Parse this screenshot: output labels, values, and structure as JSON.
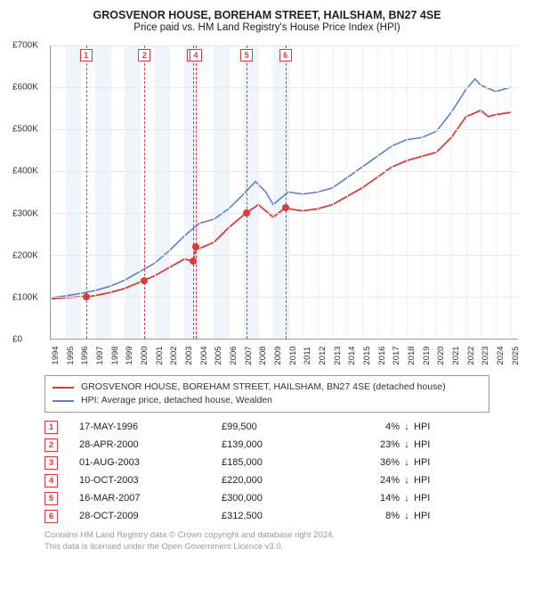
{
  "title": "GROSVENOR HOUSE, BOREHAM STREET, HAILSHAM, BN27 4SE",
  "subtitle": "Price paid vs. HM Land Registry's House Price Index (HPI)",
  "chart": {
    "type": "line",
    "xlim": [
      1994,
      2025.5
    ],
    "ylim": [
      0,
      700000
    ],
    "ytick_step": 100000,
    "ytick_labels": [
      "£0",
      "£100K",
      "£200K",
      "£300K",
      "£400K",
      "£500K",
      "£600K",
      "£700K"
    ],
    "xtick_years": [
      1994,
      1995,
      1996,
      1997,
      1998,
      1999,
      2000,
      2001,
      2002,
      2003,
      2004,
      2005,
      2006,
      2007,
      2008,
      2009,
      2010,
      2011,
      2012,
      2013,
      2014,
      2015,
      2016,
      2017,
      2018,
      2019,
      2020,
      2021,
      2022,
      2023,
      2024,
      2025
    ],
    "background_color": "#ffffff",
    "grid_color": "#e8e8e8",
    "band_color": "#e9eff9",
    "bands": [
      [
        1995,
        1996
      ],
      [
        1997,
        1998
      ],
      [
        1999,
        2000
      ],
      [
        2001,
        2002
      ],
      [
        2003,
        2004
      ],
      [
        2005,
        2006
      ],
      [
        2007,
        2008
      ],
      [
        2009,
        2010
      ]
    ],
    "marker_dash_color": "#dd3b3b",
    "series": [
      {
        "name": "property",
        "label": "GROSVENOR HOUSE, BOREHAM STREET, HAILSHAM, BN27 4SE (detached house)",
        "color": "#dd3b3b",
        "line_width": 1.8,
        "points": [
          [
            1994.0,
            95000
          ],
          [
            1995.0,
            98000
          ],
          [
            1996.0,
            100000
          ],
          [
            1996.4,
            99500
          ],
          [
            1997.0,
            103000
          ],
          [
            1998.0,
            110000
          ],
          [
            1999.0,
            120000
          ],
          [
            2000.0,
            135000
          ],
          [
            2000.3,
            139000
          ],
          [
            2001.0,
            150000
          ],
          [
            2002.0,
            170000
          ],
          [
            2003.0,
            190000
          ],
          [
            2003.6,
            185000
          ],
          [
            2003.8,
            220000
          ],
          [
            2004.0,
            215000
          ],
          [
            2005.0,
            230000
          ],
          [
            2006.0,
            265000
          ],
          [
            2007.0,
            295000
          ],
          [
            2007.2,
            300000
          ],
          [
            2008.0,
            320000
          ],
          [
            2008.5,
            305000
          ],
          [
            2009.0,
            290000
          ],
          [
            2009.8,
            312500
          ],
          [
            2010.0,
            310000
          ],
          [
            2011.0,
            305000
          ],
          [
            2012.0,
            310000
          ],
          [
            2013.0,
            320000
          ],
          [
            2014.0,
            340000
          ],
          [
            2015.0,
            360000
          ],
          [
            2016.0,
            385000
          ],
          [
            2017.0,
            410000
          ],
          [
            2018.0,
            425000
          ],
          [
            2019.0,
            435000
          ],
          [
            2020.0,
            445000
          ],
          [
            2021.0,
            480000
          ],
          [
            2022.0,
            530000
          ],
          [
            2023.0,
            545000
          ],
          [
            2023.5,
            530000
          ],
          [
            2024.0,
            535000
          ],
          [
            2025.0,
            540000
          ]
        ]
      },
      {
        "name": "hpi",
        "label": "HPI: Average price, detached house, Wealden",
        "color": "#5a7fcf",
        "line_width": 1.6,
        "points": [
          [
            1994.0,
            98000
          ],
          [
            1995.0,
            102000
          ],
          [
            1996.0,
            108000
          ],
          [
            1997.0,
            115000
          ],
          [
            1998.0,
            125000
          ],
          [
            1999.0,
            140000
          ],
          [
            2000.0,
            160000
          ],
          [
            2001.0,
            180000
          ],
          [
            2002.0,
            210000
          ],
          [
            2003.0,
            245000
          ],
          [
            2003.5,
            260000
          ],
          [
            2004.0,
            275000
          ],
          [
            2005.0,
            285000
          ],
          [
            2006.0,
            310000
          ],
          [
            2007.0,
            345000
          ],
          [
            2007.8,
            375000
          ],
          [
            2008.5,
            350000
          ],
          [
            2009.0,
            320000
          ],
          [
            2010.0,
            350000
          ],
          [
            2011.0,
            345000
          ],
          [
            2012.0,
            350000
          ],
          [
            2013.0,
            360000
          ],
          [
            2014.0,
            385000
          ],
          [
            2015.0,
            410000
          ],
          [
            2016.0,
            435000
          ],
          [
            2017.0,
            460000
          ],
          [
            2018.0,
            475000
          ],
          [
            2019.0,
            480000
          ],
          [
            2020.0,
            495000
          ],
          [
            2021.0,
            540000
          ],
          [
            2022.0,
            595000
          ],
          [
            2022.6,
            620000
          ],
          [
            2023.0,
            605000
          ],
          [
            2024.0,
            590000
          ],
          [
            2025.0,
            600000
          ]
        ]
      }
    ],
    "transactions": [
      {
        "idx": "1",
        "year": 1996.38,
        "value": 99500
      },
      {
        "idx": "2",
        "year": 2000.32,
        "value": 139000
      },
      {
        "idx": "3",
        "year": 2003.58,
        "value": 185000
      },
      {
        "idx": "4",
        "year": 2003.77,
        "value": 220000
      },
      {
        "idx": "5",
        "year": 2007.21,
        "value": 300000
      },
      {
        "idx": "6",
        "year": 2009.82,
        "value": 312500
      }
    ]
  },
  "legend_items": [
    {
      "label": "GROSVENOR HOUSE, BOREHAM STREET, HAILSHAM, BN27 4SE (detached house)",
      "color": "#dd3b3b"
    },
    {
      "label": "HPI: Average price, detached house, Wealden",
      "color": "#5a7fcf"
    }
  ],
  "transactions_table": [
    {
      "idx": "1",
      "date": "17-MAY-1996",
      "price": "£99,500",
      "diff": "4%",
      "arrow": "↓",
      "suffix": "HPI"
    },
    {
      "idx": "2",
      "date": "28-APR-2000",
      "price": "£139,000",
      "diff": "23%",
      "arrow": "↓",
      "suffix": "HPI"
    },
    {
      "idx": "3",
      "date": "01-AUG-2003",
      "price": "£185,000",
      "diff": "36%",
      "arrow": "↓",
      "suffix": "HPI"
    },
    {
      "idx": "4",
      "date": "10-OCT-2003",
      "price": "£220,000",
      "diff": "24%",
      "arrow": "↓",
      "suffix": "HPI"
    },
    {
      "idx": "5",
      "date": "16-MAR-2007",
      "price": "£300,000",
      "diff": "14%",
      "arrow": "↓",
      "suffix": "HPI"
    },
    {
      "idx": "6",
      "date": "28-OCT-2009",
      "price": "£312,500",
      "diff": "8%",
      "arrow": "↓",
      "suffix": "HPI"
    }
  ],
  "attribution": {
    "line1": "Contains HM Land Registry data © Crown copyright and database right 2024.",
    "line2": "This data is licensed under the Open Government Licence v3.0."
  }
}
